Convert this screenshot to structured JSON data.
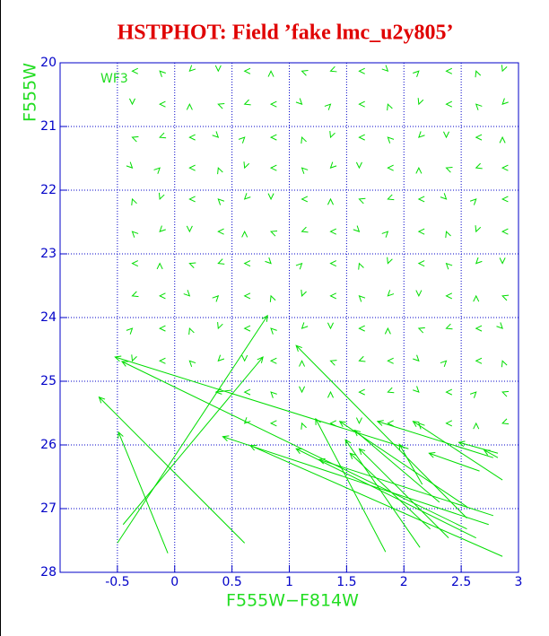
{
  "chart_data": {
    "type": "arrow",
    "title": "HSTPHOT: Field ’fake lmc_u2y805’",
    "x_label": "F555W−F814W",
    "y_label": "F555W",
    "annotation": "WF3",
    "xlim": [
      -1,
      3
    ],
    "ylim": [
      28,
      20
    ],
    "xticks": [
      -0.5,
      0,
      0.5,
      1,
      1.5,
      2,
      2.5,
      3
    ],
    "yticks": [
      20,
      21,
      22,
      23,
      24,
      25,
      26,
      27,
      28
    ],
    "grid": true,
    "color": "#00dd00",
    "arrows": [
      [
        -0.5,
        27.54,
        0.81,
        23.97
      ],
      [
        -0.45,
        27.25,
        0.77,
        24.62
      ],
      [
        0.61,
        27.54,
        -0.66,
        25.25
      ],
      [
        -0.06,
        27.7,
        -0.49,
        25.8
      ],
      [
        2.04,
        26.06,
        -0.52,
        24.62
      ],
      [
        2.55,
        27.32,
        -0.46,
        24.69
      ],
      [
        2.55,
        27.15,
        1.06,
        24.44
      ],
      [
        1.84,
        27.68,
        1.23,
        25.59
      ],
      [
        2.14,
        27.61,
        1.49,
        25.92
      ],
      [
        2.74,
        27.25,
        0.42,
        25.87
      ],
      [
        2.86,
        27.75,
        0.66,
        26.01
      ],
      [
        2.63,
        27.46,
        1.06,
        26.06
      ],
      [
        2.78,
        27.11,
        1.26,
        26.23
      ],
      [
        2.55,
        26.97,
        1.44,
        25.63
      ],
      [
        2.86,
        26.55,
        2.08,
        25.63
      ],
      [
        2.78,
        26.2,
        1.77,
        25.63
      ],
      [
        2.82,
        26.13,
        2.48,
        25.96
      ],
      [
        2.82,
        26.2,
        2.7,
        26.08
      ],
      [
        2.31,
        26.9,
        1.57,
        25.77
      ],
      [
        2.23,
        27.32,
        1.53,
        26.13
      ],
      [
        2.66,
        26.41,
        2.22,
        26.13
      ],
      [
        2.16,
        26.62,
        1.96,
        25.99
      ],
      [
        2.39,
        27.46,
        1.61,
        26.06
      ],
      [
        0.5,
        25.14,
        0.36,
        25.17
      ]
    ],
    "heads": [
      [
        -0.37,
        20.13,
        180
      ],
      [
        -0.13,
        20.13,
        225
      ],
      [
        0.13,
        20.13,
        135
      ],
      [
        0.38,
        20.13,
        90
      ],
      [
        0.61,
        20.13,
        180
      ],
      [
        0.84,
        20.13,
        270
      ],
      [
        1.11,
        20.13,
        200
      ],
      [
        1.36,
        20.13,
        160
      ],
      [
        1.61,
        20.13,
        180
      ],
      [
        1.86,
        20.13,
        45
      ],
      [
        2.13,
        20.13,
        315
      ],
      [
        2.37,
        20.13,
        180
      ],
      [
        2.63,
        20.13,
        250
      ],
      [
        2.86,
        20.13,
        110
      ],
      [
        -0.37,
        20.65,
        90
      ],
      [
        -0.13,
        20.65,
        180
      ],
      [
        0.13,
        20.65,
        270
      ],
      [
        0.38,
        20.65,
        200
      ],
      [
        0.61,
        20.65,
        160
      ],
      [
        0.84,
        20.65,
        180
      ],
      [
        1.11,
        20.65,
        45
      ],
      [
        1.36,
        20.65,
        315
      ],
      [
        1.61,
        20.65,
        180
      ],
      [
        1.86,
        20.65,
        250
      ],
      [
        2.13,
        20.65,
        110
      ],
      [
        2.37,
        20.65,
        180
      ],
      [
        2.63,
        20.65,
        225
      ],
      [
        2.86,
        20.65,
        135
      ],
      [
        -0.37,
        21.17,
        200
      ],
      [
        -0.13,
        21.17,
        160
      ],
      [
        0.13,
        21.17,
        180
      ],
      [
        0.38,
        21.17,
        45
      ],
      [
        0.61,
        21.17,
        315
      ],
      [
        0.84,
        21.17,
        180
      ],
      [
        1.11,
        21.17,
        250
      ],
      [
        1.36,
        21.17,
        110
      ],
      [
        1.61,
        21.17,
        180
      ],
      [
        1.86,
        21.17,
        225
      ],
      [
        2.13,
        21.17,
        135
      ],
      [
        2.37,
        21.17,
        90
      ],
      [
        2.63,
        21.17,
        180
      ],
      [
        2.86,
        21.17,
        270
      ],
      [
        -0.37,
        21.65,
        45
      ],
      [
        -0.13,
        21.65,
        315
      ],
      [
        0.13,
        21.65,
        180
      ],
      [
        0.38,
        21.65,
        250
      ],
      [
        0.61,
        21.65,
        110
      ],
      [
        0.84,
        21.65,
        180
      ],
      [
        1.11,
        21.65,
        225
      ],
      [
        1.36,
        21.65,
        135
      ],
      [
        1.61,
        21.65,
        90
      ],
      [
        1.86,
        21.65,
        180
      ],
      [
        2.13,
        21.65,
        270
      ],
      [
        2.37,
        21.65,
        200
      ],
      [
        2.63,
        21.65,
        160
      ],
      [
        2.86,
        21.65,
        180
      ],
      [
        -0.37,
        22.14,
        250
      ],
      [
        -0.13,
        22.14,
        110
      ],
      [
        0.13,
        22.14,
        180
      ],
      [
        0.38,
        22.14,
        225
      ],
      [
        0.61,
        22.14,
        135
      ],
      [
        0.84,
        22.14,
        90
      ],
      [
        1.11,
        22.14,
        180
      ],
      [
        1.36,
        22.14,
        270
      ],
      [
        1.61,
        22.14,
        200
      ],
      [
        1.86,
        22.14,
        160
      ],
      [
        2.13,
        22.14,
        180
      ],
      [
        2.37,
        22.14,
        45
      ],
      [
        2.63,
        22.14,
        315
      ],
      [
        2.86,
        22.14,
        180
      ],
      [
        -0.37,
        22.65,
        225
      ],
      [
        -0.13,
        22.65,
        135
      ],
      [
        0.13,
        22.65,
        90
      ],
      [
        0.38,
        22.65,
        180
      ],
      [
        0.61,
        22.65,
        270
      ],
      [
        0.84,
        22.65,
        200
      ],
      [
        1.11,
        22.65,
        160
      ],
      [
        1.36,
        22.65,
        180
      ],
      [
        1.61,
        22.65,
        45
      ],
      [
        1.86,
        22.65,
        315
      ],
      [
        2.13,
        22.65,
        180
      ],
      [
        2.37,
        22.65,
        250
      ],
      [
        2.63,
        22.65,
        110
      ],
      [
        2.86,
        22.65,
        180
      ],
      [
        -0.37,
        23.15,
        180
      ],
      [
        -0.13,
        23.15,
        270
      ],
      [
        0.13,
        23.15,
        200
      ],
      [
        0.38,
        23.15,
        160
      ],
      [
        0.61,
        23.15,
        180
      ],
      [
        0.84,
        23.15,
        45
      ],
      [
        1.11,
        23.15,
        315
      ],
      [
        1.36,
        23.15,
        180
      ],
      [
        1.61,
        23.15,
        250
      ],
      [
        1.86,
        23.15,
        110
      ],
      [
        2.13,
        23.15,
        180
      ],
      [
        2.37,
        23.15,
        225
      ],
      [
        2.63,
        23.15,
        135
      ],
      [
        2.86,
        23.15,
        90
      ],
      [
        -0.37,
        23.66,
        160
      ],
      [
        -0.13,
        23.66,
        180
      ],
      [
        0.13,
        23.66,
        45
      ],
      [
        0.38,
        23.66,
        315
      ],
      [
        0.61,
        23.66,
        180
      ],
      [
        0.84,
        23.66,
        250
      ],
      [
        1.11,
        23.66,
        110
      ],
      [
        1.36,
        23.66,
        180
      ],
      [
        1.61,
        23.66,
        225
      ],
      [
        1.86,
        23.66,
        135
      ],
      [
        2.13,
        23.66,
        90
      ],
      [
        2.37,
        23.66,
        180
      ],
      [
        2.63,
        23.66,
        270
      ],
      [
        2.86,
        23.66,
        200
      ],
      [
        -0.37,
        24.17,
        315
      ],
      [
        -0.13,
        24.17,
        180
      ],
      [
        0.13,
        24.17,
        250
      ],
      [
        0.38,
        24.17,
        110
      ],
      [
        0.61,
        24.17,
        180
      ],
      [
        0.84,
        24.17,
        225
      ],
      [
        1.11,
        24.17,
        135
      ],
      [
        1.36,
        24.17,
        90
      ],
      [
        1.61,
        24.17,
        180
      ],
      [
        1.86,
        24.17,
        270
      ],
      [
        2.13,
        24.17,
        200
      ],
      [
        2.37,
        24.17,
        160
      ],
      [
        2.63,
        24.17,
        180
      ],
      [
        2.86,
        24.17,
        45
      ],
      [
        -0.37,
        24.68,
        110
      ],
      [
        -0.13,
        24.68,
        180
      ],
      [
        0.13,
        24.68,
        225
      ],
      [
        0.38,
        24.68,
        135
      ],
      [
        0.61,
        24.68,
        90
      ],
      [
        0.84,
        24.68,
        180
      ],
      [
        1.11,
        24.68,
        270
      ],
      [
        1.36,
        24.68,
        200
      ],
      [
        1.61,
        24.68,
        160
      ],
      [
        1.86,
        24.68,
        180
      ],
      [
        2.13,
        24.68,
        45
      ],
      [
        2.37,
        24.68,
        315
      ],
      [
        2.63,
        24.68,
        180
      ],
      [
        2.86,
        24.68,
        250
      ],
      [
        0.61,
        25.17,
        180
      ],
      [
        0.84,
        25.17,
        225
      ],
      [
        1.11,
        25.17,
        90
      ],
      [
        1.36,
        25.17,
        270
      ],
      [
        1.61,
        25.17,
        180
      ],
      [
        1.86,
        25.17,
        160
      ],
      [
        2.13,
        25.17,
        45
      ],
      [
        2.37,
        25.17,
        180
      ],
      [
        2.63,
        25.17,
        315
      ],
      [
        2.86,
        25.17,
        200
      ],
      [
        0.61,
        25.66,
        135
      ],
      [
        0.84,
        25.66,
        180
      ],
      [
        1.11,
        25.66,
        250
      ],
      [
        1.36,
        25.66,
        180
      ],
      [
        1.61,
        25.66,
        90
      ],
      [
        1.86,
        25.66,
        180
      ],
      [
        2.13,
        25.66,
        225
      ],
      [
        2.37,
        25.66,
        180
      ],
      [
        2.63,
        25.66,
        270
      ],
      [
        2.86,
        25.66,
        160
      ]
    ]
  }
}
